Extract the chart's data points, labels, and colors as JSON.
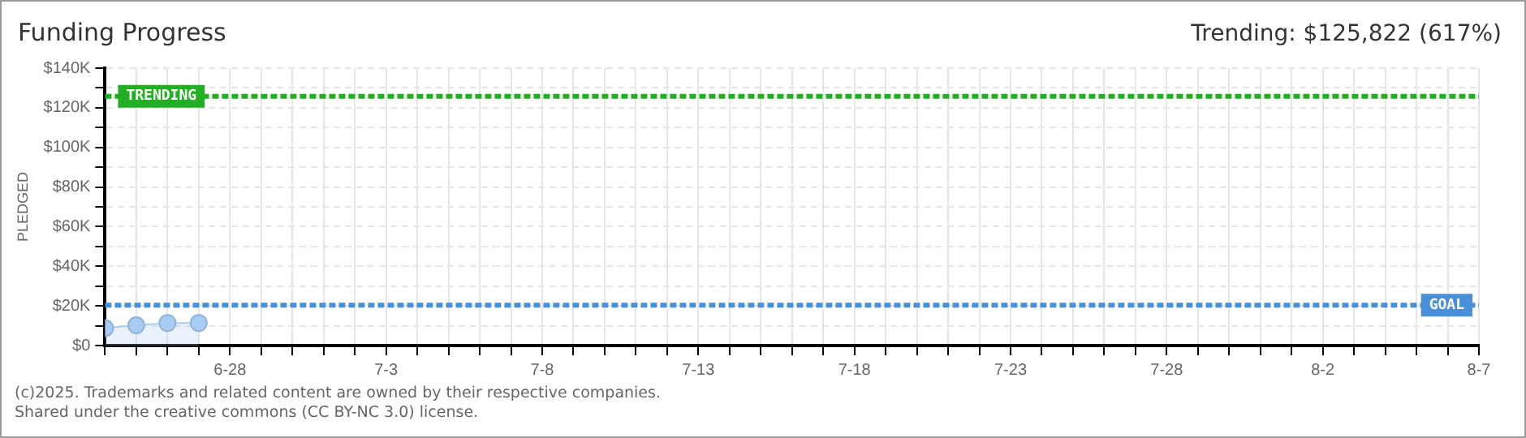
{
  "chart_data": {
    "type": "area",
    "title": "Funding Progress",
    "subtitle": "Trending: $125,822 (617%)",
    "ylabel": "PLEDGED",
    "x": [
      "--06-24",
      "--06-25",
      "--06-26",
      "--06-27"
    ],
    "series": [
      {
        "color": "#a9cdf2",
        "values": [
          8800,
          10200,
          11400,
          11400
        ]
      }
    ],
    "xlim": [
      "--06-24",
      "--08-07"
    ],
    "xticks": [
      {
        "value": "--06-24",
        "label": null
      },
      {
        "value": "--06-25",
        "label": null
      },
      {
        "value": "--06-26",
        "label": null
      },
      {
        "value": "--06-27",
        "label": null
      },
      {
        "value": "--06-28",
        "label": "6-28"
      },
      {
        "value": "--06-29",
        "label": null
      },
      {
        "value": "--06-30",
        "label": null
      },
      {
        "value": "--07-01",
        "label": null
      },
      {
        "value": "--07-02",
        "label": null
      },
      {
        "value": "--07-03",
        "label": "7-3"
      },
      {
        "value": "--07-04",
        "label": null
      },
      {
        "value": "--07-05",
        "label": null
      },
      {
        "value": "--07-06",
        "label": null
      },
      {
        "value": "--07-07",
        "label": null
      },
      {
        "value": "--07-08",
        "label": "7-8"
      },
      {
        "value": "--07-09",
        "label": null
      },
      {
        "value": "--07-10",
        "label": null
      },
      {
        "value": "--07-11",
        "label": null
      },
      {
        "value": "--07-12",
        "label": null
      },
      {
        "value": "--07-13",
        "label": "7-13"
      },
      {
        "value": "--07-14",
        "label": null
      },
      {
        "value": "--07-15",
        "label": null
      },
      {
        "value": "--07-16",
        "label": null
      },
      {
        "value": "--07-17",
        "label": null
      },
      {
        "value": "--07-18",
        "label": "7-18"
      },
      {
        "value": "--07-19",
        "label": null
      },
      {
        "value": "--07-20",
        "label": null
      },
      {
        "value": "--07-21",
        "label": null
      },
      {
        "value": "--07-22",
        "label": null
      },
      {
        "value": "--07-23",
        "label": "7-23"
      },
      {
        "value": "--07-24",
        "label": null
      },
      {
        "value": "--07-25",
        "label": null
      },
      {
        "value": "--07-26",
        "label": null
      },
      {
        "value": "--07-27",
        "label": null
      },
      {
        "value": "--07-28",
        "label": "7-28"
      },
      {
        "value": "--07-29",
        "label": null
      },
      {
        "value": "--07-30",
        "label": null
      },
      {
        "value": "--07-31",
        "label": null
      },
      {
        "value": "--08-01",
        "label": null
      },
      {
        "value": "--08-02",
        "label": "8-2"
      },
      {
        "value": "--08-03",
        "label": null
      },
      {
        "value": "--08-04",
        "label": null
      },
      {
        "value": "--08-05",
        "label": null
      },
      {
        "value": "--08-06",
        "label": null
      },
      {
        "value": "--08-07",
        "label": "8-7"
      }
    ],
    "ylim": [
      0,
      140000
    ],
    "yticks": [
      {
        "value": 0,
        "label": "$0"
      },
      {
        "value": 10000,
        "label": null
      },
      {
        "value": 20000,
        "label": "$20K"
      },
      {
        "value": 30000,
        "label": null
      },
      {
        "value": 40000,
        "label": "$40K"
      },
      {
        "value": 50000,
        "label": null
      },
      {
        "value": 60000,
        "label": "$60K"
      },
      {
        "value": 70000,
        "label": null
      },
      {
        "value": 80000,
        "label": "$80K"
      },
      {
        "value": 90000,
        "label": null
      },
      {
        "value": 100000,
        "label": "$100K"
      },
      {
        "value": 110000,
        "label": null
      },
      {
        "value": 120000,
        "label": "$120K"
      },
      {
        "value": 130000,
        "label": null
      },
      {
        "value": 140000,
        "label": "$140K"
      }
    ],
    "ref_lines": [
      {
        "axis": "y",
        "value": 20400,
        "label": "GOAL",
        "color": "#4a90d9",
        "line_style": "dashed"
      },
      {
        "axis": "y",
        "value": 125822,
        "label": "TRENDING",
        "color": "#22b022",
        "line_style": "dashed"
      }
    ],
    "grid": true,
    "marker": "circle",
    "legend": false,
    "annotations": [
      "(c)2025. Trademarks and related content are owned by their respective companies.",
      "Shared under the creative commons (CC BY-NC 3.0) license."
    ]
  }
}
